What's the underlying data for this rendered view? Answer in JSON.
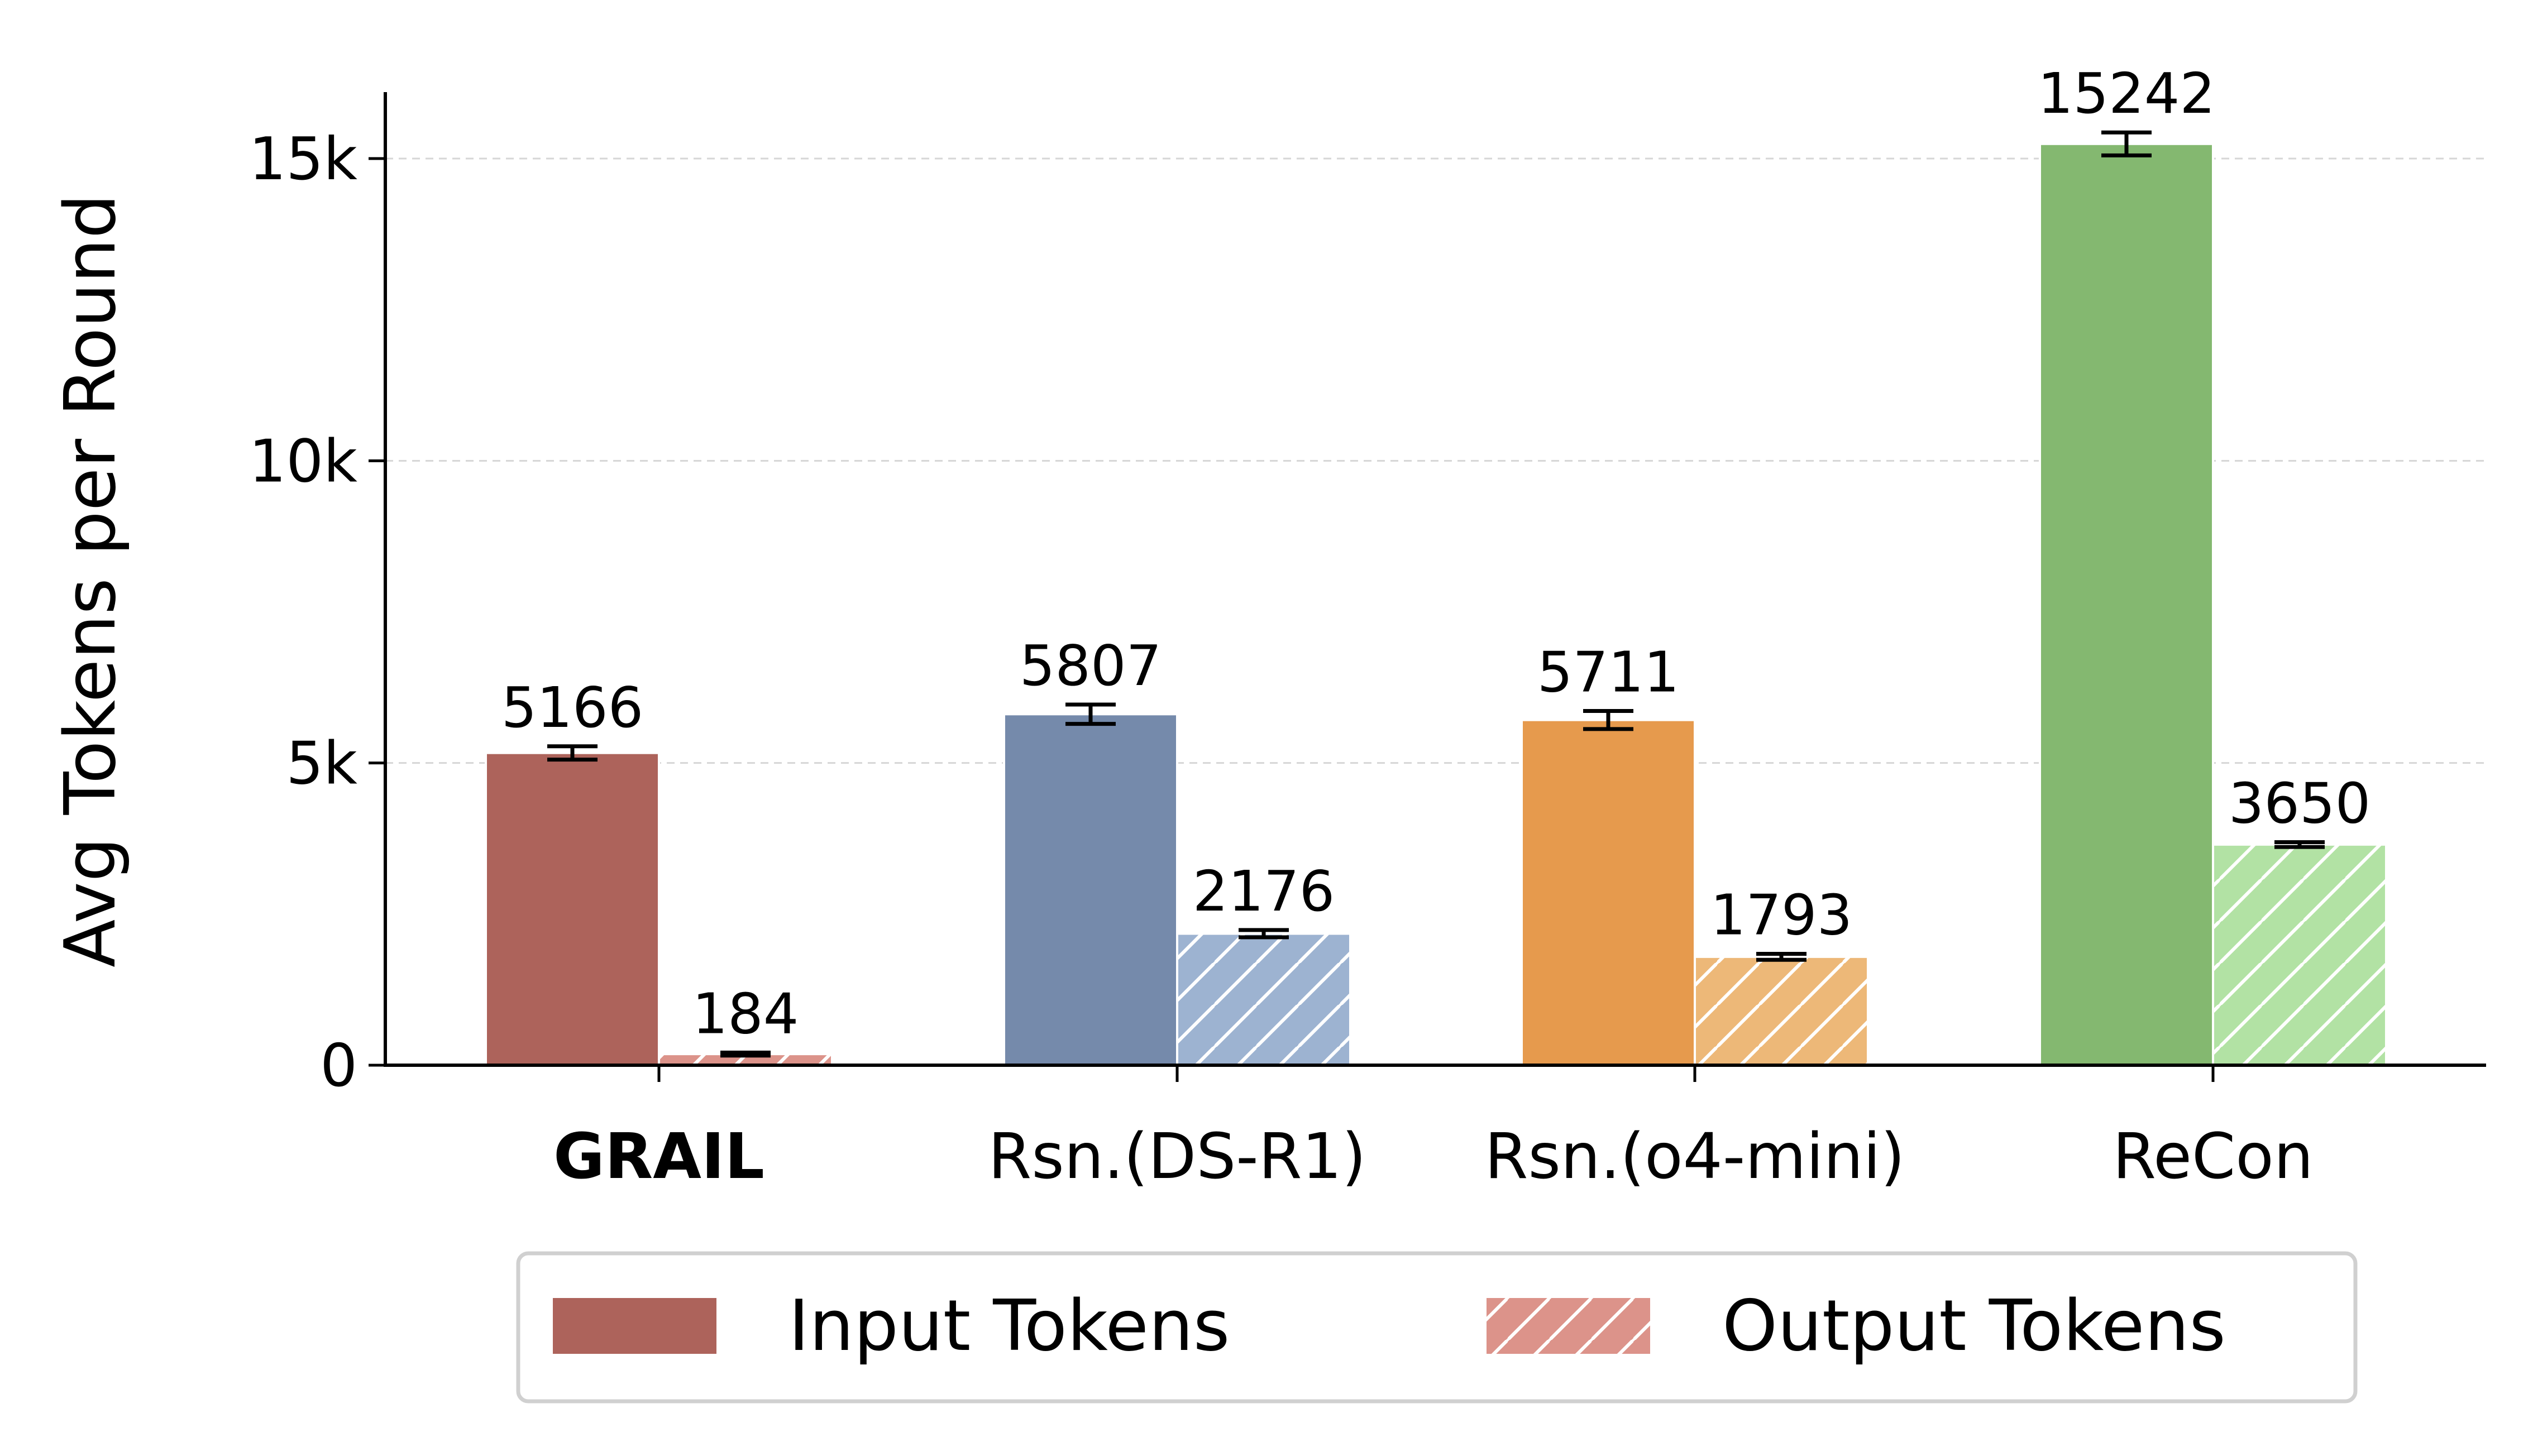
{
  "chart_data": {
    "type": "bar",
    "ylabel": "Avg Tokens per Round",
    "xlabel": "",
    "ylim": [
      0,
      16000
    ],
    "yticks": [
      0,
      5000,
      10000,
      15000
    ],
    "ytick_labels": [
      "0",
      "5k",
      "10k",
      "15k"
    ],
    "grid": "horizontal dashed",
    "legend_position": "bottom",
    "categories": [
      "GRAIL",
      "Rsn.(DS-R1)",
      "Rsn.(o4-mini)",
      "ReCon"
    ],
    "category_bold": [
      true,
      false,
      false,
      false
    ],
    "series": [
      {
        "name": "Input Tokens",
        "pattern": "solid",
        "values": [
          5166,
          5807,
          5711,
          15242
        ],
        "errors": [
          110,
          160,
          150,
          190
        ],
        "colors": [
          "#ad635b",
          "#758aab",
          "#e69a4d",
          "#84b870"
        ]
      },
      {
        "name": "Output Tokens",
        "pattern": "hatched",
        "values": [
          184,
          2176,
          1793,
          3650
        ],
        "errors": [
          25,
          60,
          50,
          40
        ],
        "colors": [
          "#dc938a",
          "#9db3d1",
          "#edb878",
          "#b2e2a4"
        ]
      }
    ],
    "legend_colors": [
      "#ad635b",
      "#dc938a"
    ]
  }
}
